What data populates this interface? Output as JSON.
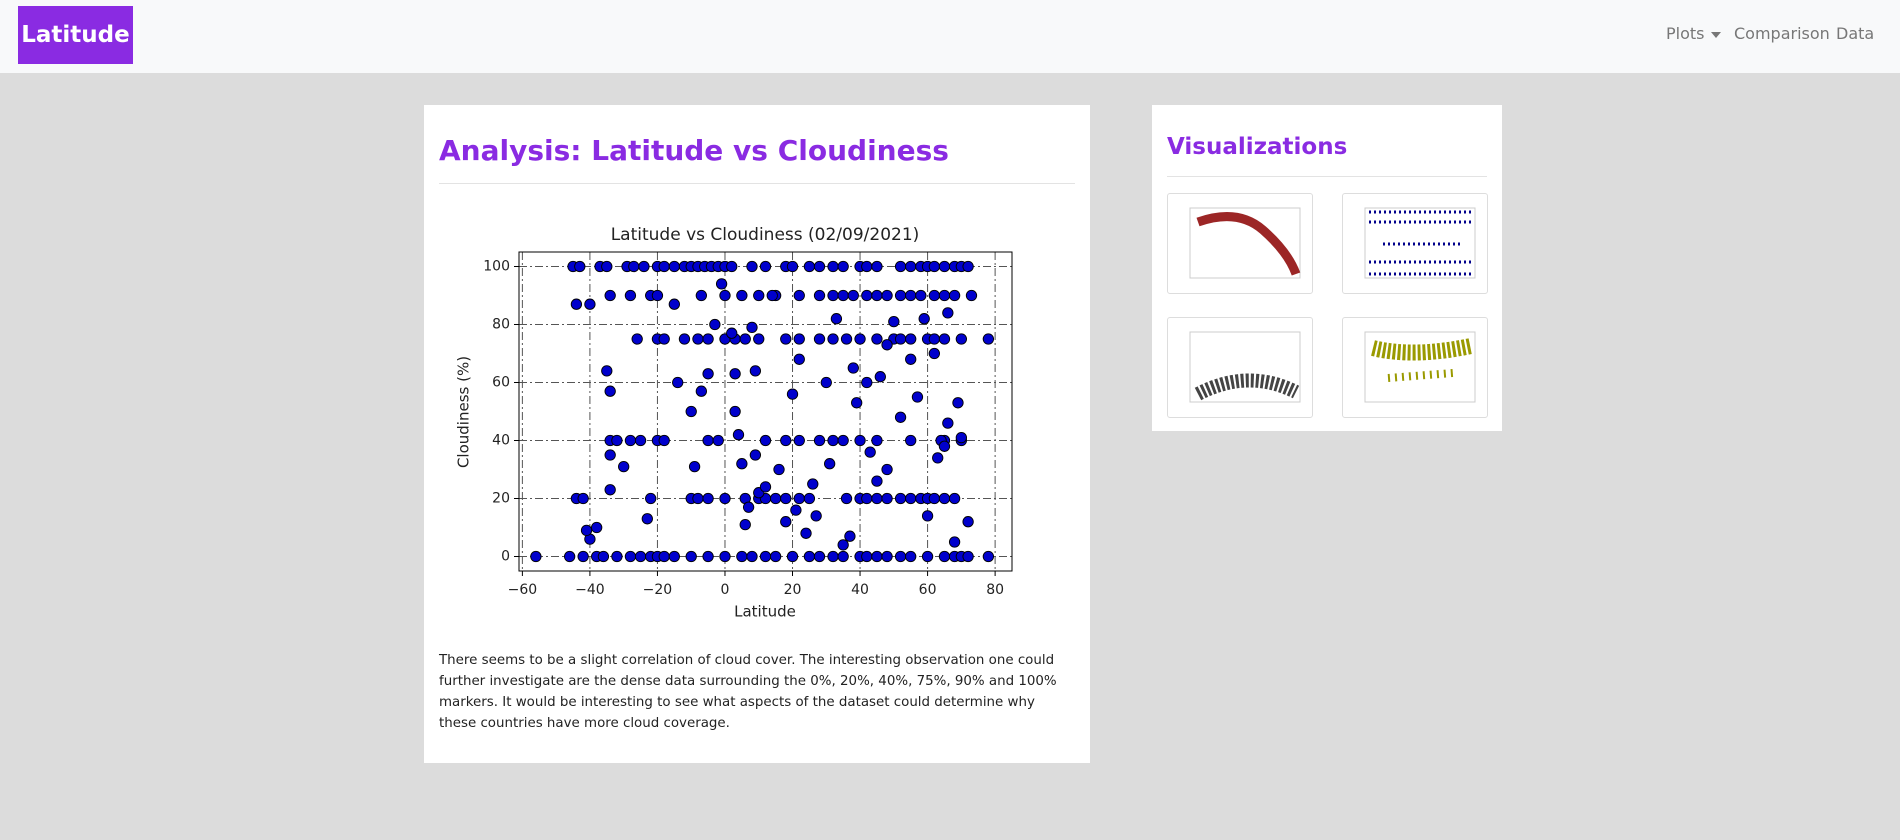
{
  "navbar": {
    "brand": "Latitude",
    "links": [
      "Plots",
      "Comparison",
      "Data"
    ]
  },
  "heading": "Analysis: Latitude vs Cloudiness",
  "chart_data": {
    "type": "scatter",
    "title": "Latitude vs Cloudiness (02/09/2021)",
    "x_label": "Latitude",
    "y_label": "Cloudiness (%)",
    "color": "#0000cc",
    "edgecolor": "#000000",
    "grid": true,
    "xlim": [
      -61,
      85
    ],
    "ylim": [
      -5,
      105
    ],
    "xticks": [
      {
        "value": -60,
        "label": "−60"
      },
      {
        "value": -40,
        "label": "−40"
      },
      {
        "value": -20,
        "label": "−20"
      },
      0,
      20,
      40,
      60,
      80
    ],
    "yticks": [
      0,
      20,
      40,
      60,
      80,
      100
    ],
    "x": [
      -45,
      -43,
      -37,
      -35,
      -29,
      -27,
      -24,
      -20,
      -18,
      -15,
      -12,
      -10,
      -8,
      -6,
      -4,
      -2,
      0,
      2,
      8,
      12,
      18,
      20,
      25,
      28,
      32,
      35,
      40,
      42,
      45,
      52,
      55,
      58,
      60,
      62,
      65,
      68,
      70,
      72,
      -34,
      -28,
      -22,
      -20,
      -7,
      0,
      5,
      10,
      15,
      22,
      28,
      32,
      35,
      38,
      42,
      45,
      48,
      52,
      55,
      58,
      62,
      65,
      68,
      73,
      -26,
      -20,
      -18,
      -12,
      -8,
      -5,
      0,
      3,
      6,
      10,
      18,
      22,
      28,
      32,
      36,
      40,
      45,
      50,
      52,
      55,
      60,
      62,
      65,
      70,
      78,
      -34,
      -32,
      -28,
      -25,
      -20,
      -18,
      -5,
      -2,
      12,
      18,
      22,
      28,
      32,
      35,
      40,
      45,
      55,
      65,
      70,
      -44,
      -42,
      -22,
      -10,
      -8,
      -5,
      0,
      6,
      10,
      12,
      15,
      18,
      22,
      25,
      36,
      40,
      42,
      45,
      48,
      52,
      55,
      58,
      60,
      62,
      65,
      68,
      -56,
      -46,
      -42,
      -38,
      -36,
      -32,
      -28,
      -25,
      -22,
      -20,
      -18,
      -15,
      -10,
      -5,
      0,
      5,
      8,
      12,
      15,
      20,
      25,
      28,
      32,
      35,
      40,
      42,
      45,
      48,
      52,
      55,
      60,
      65,
      68,
      70,
      72,
      78,
      -44,
      -40,
      -35,
      -34,
      -34,
      -34,
      -38,
      -40,
      -41,
      -30,
      -23,
      -15,
      -14,
      -10,
      -9,
      -7,
      -5,
      -3,
      -1,
      2,
      3,
      3,
      4,
      5,
      6,
      7,
      8,
      9,
      9,
      10,
      12,
      14,
      16,
      18,
      20,
      21,
      22,
      24,
      26,
      27,
      30,
      31,
      33,
      35,
      37,
      38,
      39,
      42,
      43,
      45,
      46,
      48,
      48,
      50,
      52,
      55,
      57,
      59,
      60,
      62,
      63,
      64,
      65,
      66,
      68,
      69,
      70,
      72,
      66
    ],
    "values": [
      100,
      100,
      100,
      100,
      100,
      100,
      100,
      100,
      100,
      100,
      100,
      100,
      100,
      100,
      100,
      100,
      100,
      100,
      100,
      100,
      100,
      100,
      100,
      100,
      100,
      100,
      100,
      100,
      100,
      100,
      100,
      100,
      100,
      100,
      100,
      100,
      100,
      100,
      90,
      90,
      90,
      90,
      90,
      90,
      90,
      90,
      90,
      90,
      90,
      90,
      90,
      90,
      90,
      90,
      90,
      90,
      90,
      90,
      90,
      90,
      90,
      90,
      75,
      75,
      75,
      75,
      75,
      75,
      75,
      75,
      75,
      75,
      75,
      75,
      75,
      75,
      75,
      75,
      75,
      75,
      75,
      75,
      75,
      75,
      75,
      75,
      75,
      40,
      40,
      40,
      40,
      40,
      40,
      40,
      40,
      40,
      40,
      40,
      40,
      40,
      40,
      40,
      40,
      40,
      40,
      40,
      20,
      20,
      20,
      20,
      20,
      20,
      20,
      20,
      20,
      20,
      20,
      20,
      20,
      20,
      20,
      20,
      20,
      20,
      20,
      20,
      20,
      20,
      20,
      20,
      20,
      20,
      0,
      0,
      0,
      0,
      0,
      0,
      0,
      0,
      0,
      0,
      0,
      0,
      0,
      0,
      0,
      0,
      0,
      0,
      0,
      0,
      0,
      0,
      0,
      0,
      0,
      0,
      0,
      0,
      0,
      0,
      0,
      0,
      0,
      0,
      0,
      0,
      87,
      87,
      64,
      57,
      35,
      23,
      10,
      6,
      9,
      31,
      13,
      87,
      60,
      50,
      31,
      57,
      63,
      80,
      94,
      77,
      63,
      50,
      42,
      32,
      11,
      17,
      79,
      35,
      64,
      22,
      24,
      90,
      30,
      12,
      56,
      16,
      68,
      8,
      25,
      14,
      60,
      32,
      82,
      4,
      7,
      65,
      53,
      60,
      36,
      26,
      62,
      30,
      73,
      81,
      48,
      68,
      55,
      82,
      14,
      70,
      34,
      40,
      38,
      46,
      5,
      53,
      41,
      12,
      84
    ]
  },
  "description": "There seems to be a slight correlation of cloud cover. The interesting observation one could further investigate are the dense data surrounding the 0%, 20%, 40%, 75%, 90% and 100% markers. It would be interesting to see what aspects of the dataset could determine why these countries have more cloud coverage.",
  "sidebar": {
    "heading": "Visualizations"
  }
}
